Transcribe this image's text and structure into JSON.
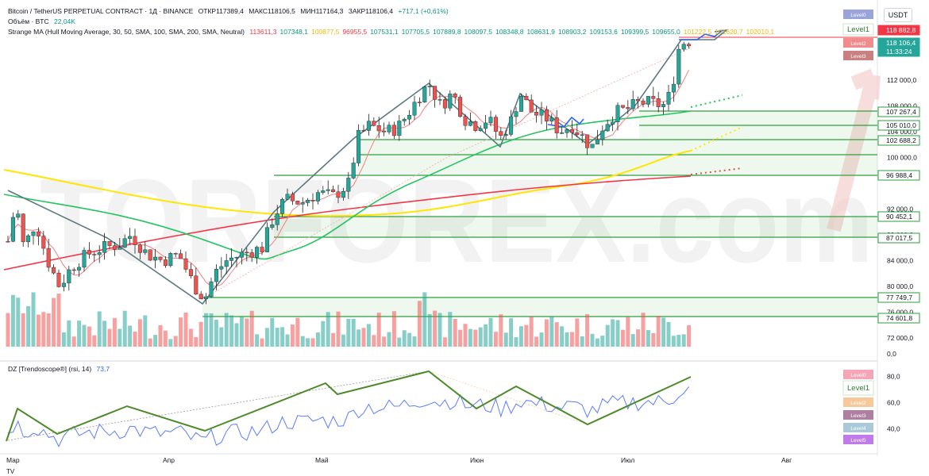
{
  "header": {
    "symbol": "Bitcoin / TetherUS PERPETUAL CONTRACT · 1Д · BINANCE",
    "open": "ОТКР117389,4",
    "high": "МАКС118106,5",
    "low": "МИН117164,3",
    "close": "ЗАКР118106,4",
    "change": "+717,1 (+0,61%)",
    "volume_label": "Объём · BTC",
    "volume_value": "22,04K",
    "ma_label": "Strange MA (Hull Moving Average, 30, 50, SMA, 100, SMA, 200, SMA, Neutral)",
    "ma_values": [
      {
        "v": "113611,3",
        "color": "#f23645"
      },
      {
        "v": "107348,1",
        "color": "#089981"
      },
      {
        "v": "100877,5",
        "color": "#f5b800"
      },
      {
        "v": "96955,5",
        "color": "#f23645"
      },
      {
        "v": "107531,1",
        "color": "#089981"
      },
      {
        "v": "107705,5",
        "color": "#089981"
      },
      {
        "v": "107889,8",
        "color": "#089981"
      },
      {
        "v": "108097,5",
        "color": "#089981"
      },
      {
        "v": "108348,8",
        "color": "#089981"
      },
      {
        "v": "108631,9",
        "color": "#089981"
      },
      {
        "v": "108903,2",
        "color": "#089981"
      },
      {
        "v": "109153,6",
        "color": "#089981"
      },
      {
        "v": "109399,5",
        "color": "#089981"
      },
      {
        "v": "109655,0",
        "color": "#089981"
      },
      {
        "v": "101222,5",
        "color": "#f5b800"
      },
      {
        "v": "101620,7",
        "color": "#f5b800"
      },
      {
        "v": "102010,1",
        "color": "#f5b800"
      }
    ],
    "currency": "USDT"
  },
  "rsi": {
    "label": "DZ [Trendoscope®] (rsi, 14)",
    "value": "73,7",
    "axis": [
      "80,0",
      "60,0",
      "40,0"
    ]
  },
  "price_axis": [
    "112 000,0",
    "108 000,0",
    "104 000,0",
    "100 000,0",
    "92 000,0",
    "88 000,0",
    "84 000,0",
    "80 000,0",
    "76 000,0",
    "72 000,0",
    "0,0"
  ],
  "price_tags": [
    {
      "v": "118 882,8",
      "kind": "red"
    },
    {
      "v": "118 106,4",
      "kind": "green"
    },
    {
      "v": "11:33:24",
      "kind": "green"
    },
    {
      "v": "107 267,4",
      "kind": "box"
    },
    {
      "v": "105 010,0",
      "kind": "box"
    },
    {
      "v": "102 688,2",
      "kind": "box"
    },
    {
      "v": "96 988,4",
      "kind": "box"
    },
    {
      "v": "90 452,1",
      "kind": "box"
    },
    {
      "v": "87 017,5",
      "kind": "box"
    },
    {
      "v": "77 749,7",
      "kind": "box"
    },
    {
      "v": "74 601,8",
      "kind": "box"
    }
  ],
  "level_tags_top": [
    "Level0",
    "Level1",
    "Level2",
    "Level3"
  ],
  "level_tags_rsi": [
    "Level0",
    "Level1",
    "Level2",
    "Level3",
    "Level4",
    "Level5"
  ],
  "time_axis": [
    "Мар",
    "Апр",
    "Май",
    "Июн",
    "Июл",
    "Авг"
  ],
  "watermark": "TORFOREX.com",
  "footer_logo": "TV",
  "colors": {
    "up": "#26a69a",
    "down": "#ef5350",
    "ma30": "#f23645",
    "ma50": "#22c55e",
    "ma100": "#ffe600",
    "ma200": "#f23645",
    "level": "#2e9e3f",
    "zigzag": "#4c8a2a"
  }
}
